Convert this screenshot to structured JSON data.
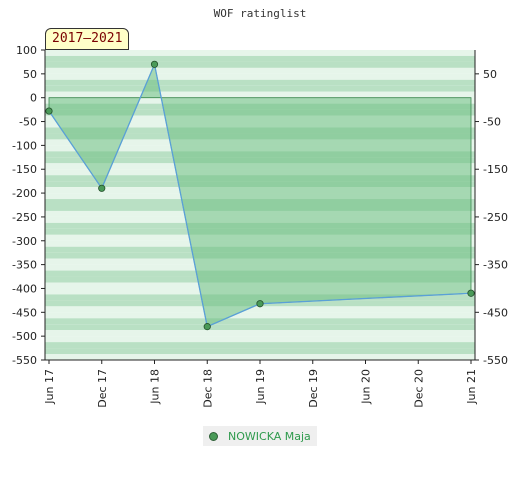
{
  "header": {
    "title": "WOF ratinglist",
    "period_badge": "2017–2021"
  },
  "legend": {
    "label": "NOWICKA Maja"
  },
  "colors": {
    "line": "#5aa0d8",
    "fill": "#6fbf84",
    "marker": "#4a9a58",
    "band_dark": "#b9e0c4",
    "band_light": "#e6f5ea"
  },
  "chart_data": {
    "type": "area",
    "title": "WOF ratinglist",
    "xlabel": "",
    "ylabel": "",
    "x": [
      "Jun 17",
      "Dec 17",
      "Jun 18",
      "Dec 18",
      "Jun 19",
      "Dec 19",
      "Jun 20",
      "Dec 20",
      "Jun 21"
    ],
    "series": [
      {
        "name": "NOWICKA Maja",
        "points": [
          {
            "x": "Jun 17",
            "y": -28
          },
          {
            "x": "Dec 17",
            "y": -190
          },
          {
            "x": "Jun 18",
            "y": 70
          },
          {
            "x": "Dec 18",
            "y": -480
          },
          {
            "x": "Jun 19",
            "y": -432
          },
          {
            "x": "Jun 21",
            "y": -410
          }
        ]
      }
    ],
    "ylim": [
      -550,
      100
    ],
    "y_ticks_left": [
      100,
      50,
      0,
      -50,
      -100,
      -150,
      -200,
      -250,
      -300,
      -350,
      -400,
      -450,
      -500,
      -550
    ],
    "y_ticks_right": [
      50,
      -50,
      -150,
      -250,
      -350,
      -450,
      -550
    ],
    "grid": false,
    "legend_position": "bottom-center"
  }
}
